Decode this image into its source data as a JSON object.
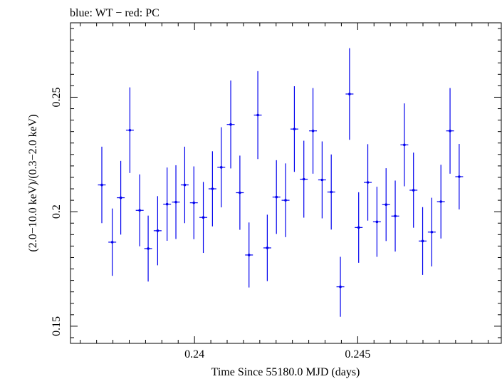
{
  "chart_data": {
    "type": "scatter",
    "title": "blue: WT − red: PC",
    "xlabel": "Time Since 55180.0 MJD (days)",
    "ylabel": "(2.0−10.0 keV)/(0.3−2.0 keV)",
    "xlim": [
      0.2362,
      0.2494
    ],
    "ylim": [
      0.1425,
      0.2825
    ],
    "x_ticks": [
      0.24,
      0.245
    ],
    "x_tick_labels": [
      "0.24",
      "0.245"
    ],
    "y_ticks": [
      0.15,
      0.2,
      0.25
    ],
    "y_tick_labels": [
      "0.15",
      "0.2",
      "0.25"
    ],
    "series": [
      {
        "name": "WT",
        "color": "#0000ee",
        "x_half_width": 0.00012,
        "points": [
          {
            "x": 0.23716,
            "y": 0.2117,
            "err": 0.0167
          },
          {
            "x": 0.23748,
            "y": 0.1867,
            "err": 0.0147
          },
          {
            "x": 0.23774,
            "y": 0.2061,
            "err": 0.0161
          },
          {
            "x": 0.23802,
            "y": 0.2356,
            "err": 0.0187
          },
          {
            "x": 0.23832,
            "y": 0.2006,
            "err": 0.0157
          },
          {
            "x": 0.23858,
            "y": 0.1839,
            "err": 0.0144
          },
          {
            "x": 0.23887,
            "y": 0.1917,
            "err": 0.0151
          },
          {
            "x": 0.23916,
            "y": 0.2033,
            "err": 0.016
          },
          {
            "x": 0.23943,
            "y": 0.2042,
            "err": 0.0161
          },
          {
            "x": 0.2397,
            "y": 0.2117,
            "err": 0.0167
          },
          {
            "x": 0.23998,
            "y": 0.2039,
            "err": 0.0159
          },
          {
            "x": 0.24027,
            "y": 0.1975,
            "err": 0.0155
          },
          {
            "x": 0.24055,
            "y": 0.21,
            "err": 0.0164
          },
          {
            "x": 0.24082,
            "y": 0.2194,
            "err": 0.0175
          },
          {
            "x": 0.24111,
            "y": 0.2381,
            "err": 0.0192
          },
          {
            "x": 0.24139,
            "y": 0.2083,
            "err": 0.0162
          },
          {
            "x": 0.24167,
            "y": 0.1811,
            "err": 0.0142
          },
          {
            "x": 0.24194,
            "y": 0.2422,
            "err": 0.0192
          },
          {
            "x": 0.24223,
            "y": 0.1842,
            "err": 0.0145
          },
          {
            "x": 0.24251,
            "y": 0.2064,
            "err": 0.0161
          },
          {
            "x": 0.24279,
            "y": 0.205,
            "err": 0.0161
          },
          {
            "x": 0.24306,
            "y": 0.2361,
            "err": 0.0187
          },
          {
            "x": 0.24335,
            "y": 0.2142,
            "err": 0.0168
          },
          {
            "x": 0.24363,
            "y": 0.2353,
            "err": 0.0187
          },
          {
            "x": 0.24391,
            "y": 0.2139,
            "err": 0.0168
          },
          {
            "x": 0.24419,
            "y": 0.2086,
            "err": 0.0164
          },
          {
            "x": 0.24447,
            "y": 0.1672,
            "err": 0.0131
          },
          {
            "x": 0.24475,
            "y": 0.2514,
            "err": 0.02
          },
          {
            "x": 0.24503,
            "y": 0.1931,
            "err": 0.0154
          },
          {
            "x": 0.24531,
            "y": 0.2128,
            "err": 0.0167
          },
          {
            "x": 0.24559,
            "y": 0.1956,
            "err": 0.0153
          },
          {
            "x": 0.24587,
            "y": 0.2031,
            "err": 0.0159
          },
          {
            "x": 0.24615,
            "y": 0.1981,
            "err": 0.0155
          },
          {
            "x": 0.24643,
            "y": 0.2292,
            "err": 0.0181
          },
          {
            "x": 0.24671,
            "y": 0.2094,
            "err": 0.0164
          },
          {
            "x": 0.24699,
            "y": 0.1872,
            "err": 0.0148
          },
          {
            "x": 0.24727,
            "y": 0.1911,
            "err": 0.015
          },
          {
            "x": 0.24755,
            "y": 0.2044,
            "err": 0.0161
          },
          {
            "x": 0.24783,
            "y": 0.2353,
            "err": 0.0187
          },
          {
            "x": 0.24811,
            "y": 0.2153,
            "err": 0.0143
          }
        ]
      }
    ]
  }
}
